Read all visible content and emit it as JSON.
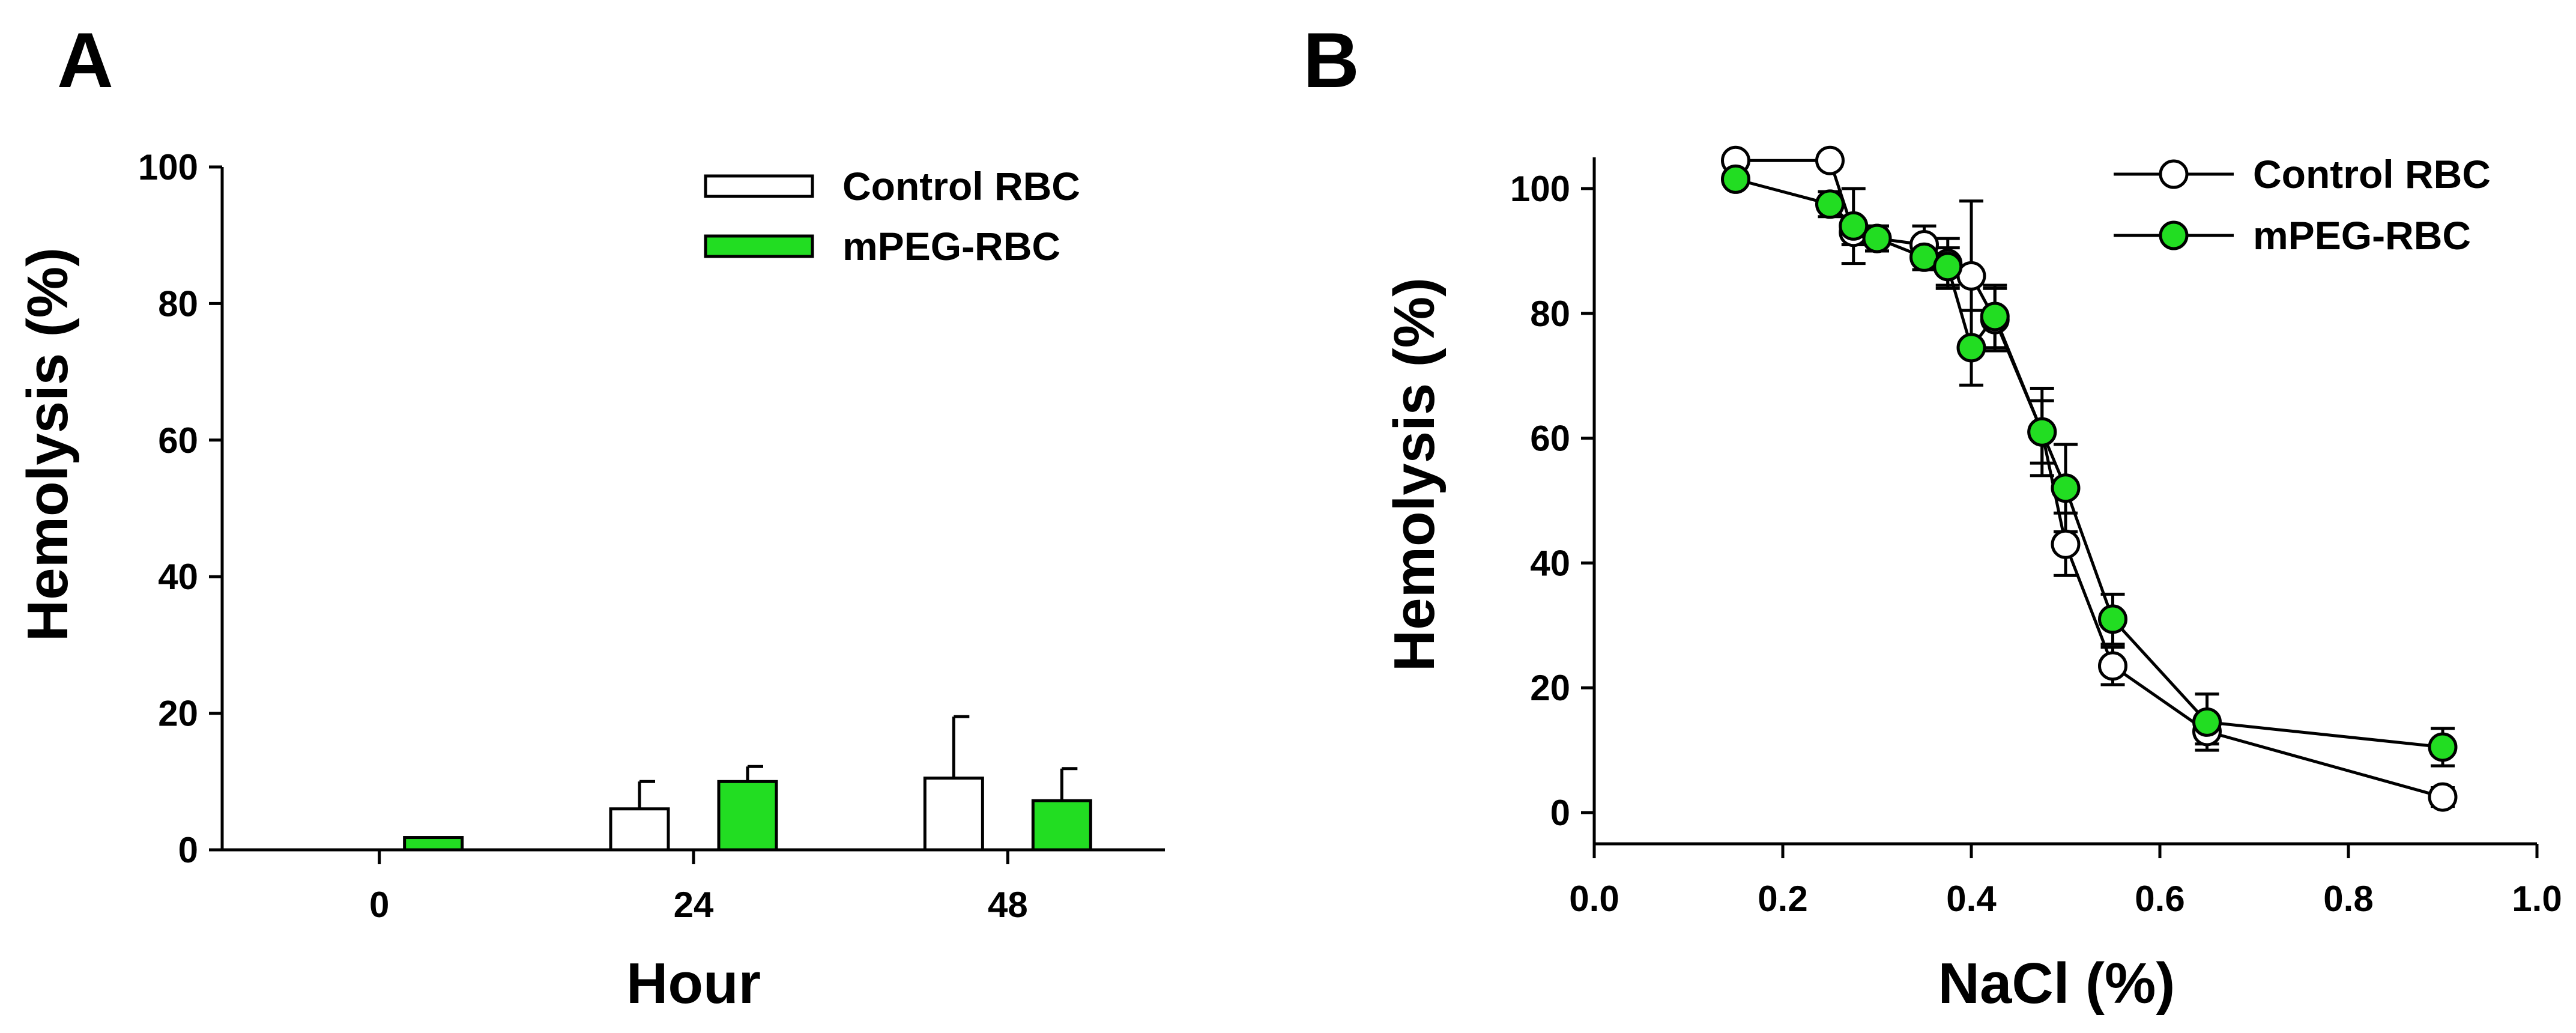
{
  "colors": {
    "mpeg": "#22dd22",
    "control": "#ffffff",
    "stroke": "#000000"
  },
  "chart_data": [
    {
      "panel": "A",
      "type": "bar",
      "title": "",
      "xlabel": "Hour",
      "ylabel": "Hemolysis (%)",
      "ylim": [
        0,
        100
      ],
      "yticks": [
        "0",
        "20",
        "40",
        "60",
        "80",
        "100"
      ],
      "categories": [
        "0",
        "24",
        "48"
      ],
      "legend_position": "top-right",
      "series": [
        {
          "name": "Control RBC",
          "color": "#ffffff",
          "values": [
            0,
            6,
            10.5
          ],
          "errors": [
            0,
            4,
            9
          ]
        },
        {
          "name": "mPEG-RBC",
          "color": "#22dd22",
          "values": [
            1.8,
            10,
            7.2
          ],
          "errors": [
            0,
            2.2,
            4.7
          ]
        }
      ]
    },
    {
      "panel": "B",
      "type": "line",
      "title": "",
      "xlabel": "NaCl (%)",
      "ylabel": "Hemolysis (%)",
      "xlim": [
        0,
        1.0
      ],
      "ylim": [
        -5,
        105
      ],
      "xticks": [
        "0.0",
        "0.2",
        "0.4",
        "0.6",
        "0.8",
        "1.0"
      ],
      "yticks": [
        "0",
        "20",
        "40",
        "60",
        "80",
        "100"
      ],
      "legend_position": "top-right",
      "series": [
        {
          "name": "Control RBC",
          "color": "#ffffff",
          "x": [
            0.15,
            0.25,
            0.275,
            0.3,
            0.35,
            0.375,
            0.4,
            0.425,
            0.475,
            0.5,
            0.55,
            0.65,
            0.9
          ],
          "y": [
            104.5,
            104.5,
            93,
            92,
            91,
            88,
            86,
            79,
            61,
            43,
            23.5,
            13,
            2.5
          ],
          "errors": [
            0,
            0,
            2,
            2,
            3,
            4,
            12,
            5,
            5,
            5,
            3,
            2,
            1.5
          ]
        },
        {
          "name": "mPEG-RBC",
          "color": "#22dd22",
          "x": [
            0.15,
            0.25,
            0.275,
            0.3,
            0.35,
            0.375,
            0.4,
            0.425,
            0.475,
            0.5,
            0.55,
            0.65,
            0.9
          ],
          "y": [
            101.5,
            97.5,
            94,
            92,
            89,
            87.5,
            74.5,
            79.5,
            61,
            52,
            31,
            14.5,
            10.5
          ],
          "errors": [
            0,
            2,
            6,
            2,
            2,
            3,
            6,
            5,
            7,
            7,
            4,
            4.5,
            3
          ]
        }
      ]
    }
  ]
}
